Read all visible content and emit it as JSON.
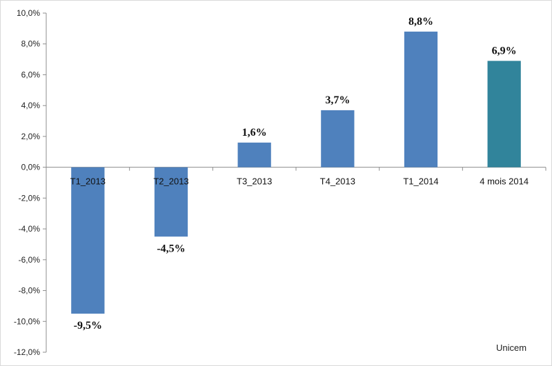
{
  "chart_data": {
    "type": "bar",
    "title": "",
    "xlabel": "",
    "ylabel": "",
    "categories": [
      "T1_2013",
      "T2_2013",
      "T3_2013",
      "T4_2013",
      "T1_2014",
      "4 mois 2014"
    ],
    "values": [
      -9.5,
      -4.5,
      1.6,
      3.7,
      8.8,
      6.9
    ],
    "data_labels": [
      "-9,5%",
      "-4,5%",
      "1,6%",
      "3,7%",
      "8,8%",
      "6,9%"
    ],
    "ylim": [
      -12,
      10
    ],
    "y_ticks": [
      10,
      8,
      6,
      4,
      2,
      0,
      -2,
      -4,
      -6,
      -8,
      -10,
      -12
    ],
    "y_tick_labels": [
      "10,0%",
      "8,0%",
      "6,0%",
      "4,0%",
      "2,0%",
      "0,0%",
      "-2,0%",
      "-4,0%",
      "-6,0%",
      "-8,0%",
      "-10,0%",
      "-12,0%"
    ],
    "grid": false,
    "bar_colors": [
      "#4f81bd",
      "#4f81bd",
      "#4f81bd",
      "#4f81bd",
      "#4f81bd",
      "#31849b"
    ]
  },
  "source": "Unicem"
}
